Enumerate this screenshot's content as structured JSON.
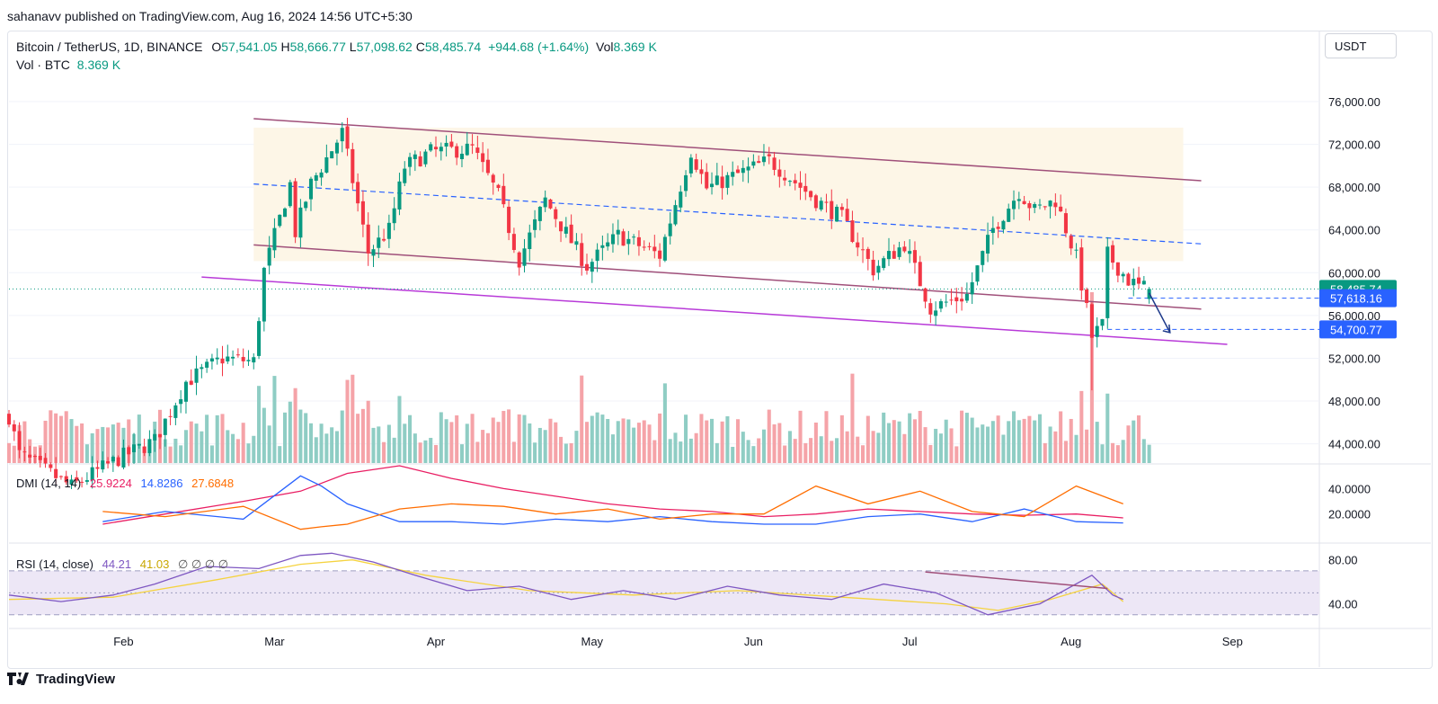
{
  "publisher": "sahanavv published on TradingView.com, Aug 16, 2024 14:56 UTC+5:30",
  "currency_button": "USDT",
  "footer_brand": "TradingView",
  "legend": {
    "symbol": "Bitcoin / TetherUS, 1D, BINANCE",
    "o_label": "O",
    "o": "57,541.05",
    "h_label": "H",
    "h": "58,666.77",
    "l_label": "L",
    "l": "57,098.62",
    "c_label": "C",
    "c": "58,485.74",
    "change": "+944.68 (+1.64%)",
    "vol_label": "Vol",
    "vol": "8.369 K",
    "vol_row_label": "Vol · BTC",
    "vol_row_value": "8.369 K"
  },
  "dmi_legend": {
    "label": "DMI (14, 14)",
    "v1": "25.9224",
    "v2": "14.8286",
    "v3": "27.6848"
  },
  "rsi_legend": {
    "label": "RSI (14, close)",
    "v1": "44.21",
    "v2": "41.03",
    "icons": "∅ ∅ ∅ ∅"
  },
  "colors": {
    "up": "#089981",
    "down": "#f23645",
    "vol_up": "#8fcdc4",
    "vol_down": "#f5a3a8",
    "channel": "#a0507a",
    "support": "#b83ad8",
    "dashed": "#2962ff",
    "adx": "#e91e63",
    "plus_di": "#2962ff",
    "minus_di": "#ff6d00",
    "rsi": "#7e57c2",
    "rsi_ma": "#f5d33f",
    "band": "#ede7f6",
    "channel_fill": "#fdf6e7",
    "tag_blue": "#2962ff",
    "tag_green": "#089981"
  },
  "chart_data": {
    "type": "candlestick",
    "title": "Bitcoin / TetherUS, 1D, BINANCE",
    "x_ticks": [
      "Feb",
      "Mar",
      "Apr",
      "May",
      "Jun",
      "Jul",
      "Aug",
      "Sep"
    ],
    "x_tick_dates": [
      "2024-02-01",
      "2024-03-01",
      "2024-04-01",
      "2024-05-01",
      "2024-06-01",
      "2024-07-01",
      "2024-08-01",
      "2024-09-01"
    ],
    "x_range": [
      "2024-01-10",
      "2024-09-17"
    ],
    "y_ticks": [
      "76,000.00",
      "72,000.00",
      "68,000.00",
      "64,000.00",
      "60,000.00",
      "56,000.00",
      "52,000.00",
      "48,000.00",
      "44,000.00"
    ],
    "y_tick_values": [
      76000,
      72000,
      68000,
      64000,
      60000,
      56000,
      52000,
      48000,
      44000
    ],
    "ylim": [
      42200,
      77600
    ],
    "price_tags": [
      {
        "label": "58,485.74",
        "value": 58485.74,
        "kind": "last"
      },
      {
        "label": "57,618.16",
        "value": 57618.16,
        "kind": "level"
      },
      {
        "label": "54,700.77",
        "value": 54700.77,
        "kind": "level"
      }
    ],
    "anchors": [
      [
        "2024-01-10",
        46600
      ],
      [
        "2024-01-12",
        43000
      ],
      [
        "2024-01-22",
        40000
      ],
      [
        "2024-01-31",
        42600
      ],
      [
        "2024-02-07",
        44300
      ],
      [
        "2024-02-13",
        49800
      ],
      [
        "2024-02-20",
        52000
      ],
      [
        "2024-02-26",
        51700
      ],
      [
        "2024-02-28",
        60200
      ],
      [
        "2024-03-04",
        68300
      ],
      [
        "2024-03-05",
        63800
      ],
      [
        "2024-03-08",
        68300
      ],
      [
        "2024-03-14",
        73100
      ],
      [
        "2024-03-19",
        61900
      ],
      [
        "2024-03-23",
        64000
      ],
      [
        "2024-03-26",
        69900
      ],
      [
        "2024-03-31",
        71300
      ],
      [
        "2024-04-08",
        71600
      ],
      [
        "2024-04-13",
        67200
      ],
      [
        "2024-04-17",
        61200
      ],
      [
        "2024-04-22",
        66800
      ],
      [
        "2024-04-30",
        60600
      ],
      [
        "2024-05-06",
        63500
      ],
      [
        "2024-05-14",
        61600
      ],
      [
        "2024-05-20",
        71400
      ],
      [
        "2024-05-23",
        67900
      ],
      [
        "2024-06-04",
        70500
      ],
      [
        "2024-06-07",
        69300
      ],
      [
        "2024-06-13",
        66800
      ],
      [
        "2024-06-18",
        65100
      ],
      [
        "2024-06-24",
        60300
      ],
      [
        "2024-06-30",
        62700
      ],
      [
        "2024-07-05",
        56700
      ],
      [
        "2024-07-12",
        57900
      ],
      [
        "2024-07-17",
        64100
      ],
      [
        "2024-07-22",
        67600
      ],
      [
        "2024-07-25",
        65800
      ],
      [
        "2024-07-29",
        66800
      ],
      [
        "2024-08-02",
        61400
      ],
      [
        "2024-08-05",
        54000
      ],
      [
        "2024-08-07",
        55100
      ],
      [
        "2024-08-08",
        61700
      ],
      [
        "2024-08-12",
        59300
      ],
      [
        "2024-08-14",
        58700
      ],
      [
        "2024-08-16",
        58485.74
      ]
    ],
    "channel_upper": [
      [
        "2024-02-26",
        74400
      ],
      [
        "2024-08-26",
        68600
      ]
    ],
    "channel_lower": [
      [
        "2024-02-26",
        62600
      ],
      [
        "2024-08-26",
        56600
      ]
    ],
    "channel_mid": [
      [
        "2024-02-26",
        68300
      ],
      [
        "2024-08-26",
        62700
      ]
    ],
    "support_line": [
      [
        "2024-02-16",
        59600
      ],
      [
        "2024-08-31",
        53300
      ]
    ],
    "projection": [
      [
        "2024-08-16",
        58100
      ],
      [
        "2024-08-20",
        54400
      ]
    ],
    "dmi": {
      "y_ticks": [
        "40.0000",
        "20.0000"
      ],
      "y_tick_values": [
        40,
        20
      ],
      "ylim": [
        0,
        58
      ],
      "adx": [
        [
          18,
          12
        ],
        [
          30,
          20
        ],
        [
          45,
          30
        ],
        [
          56,
          38
        ],
        [
          65,
          52
        ],
        [
          75,
          58
        ],
        [
          85,
          48
        ],
        [
          95,
          40
        ],
        [
          105,
          34
        ],
        [
          115,
          28
        ],
        [
          125,
          24
        ],
        [
          135,
          22
        ],
        [
          145,
          18
        ],
        [
          155,
          20
        ],
        [
          165,
          24
        ],
        [
          175,
          22
        ],
        [
          185,
          20
        ],
        [
          195,
          19
        ],
        [
          205,
          20
        ],
        [
          214,
          17
        ]
      ],
      "plus": [
        [
          18,
          14
        ],
        [
          30,
          22
        ],
        [
          45,
          16
        ],
        [
          56,
          50
        ],
        [
          60,
          42
        ],
        [
          65,
          28
        ],
        [
          75,
          14
        ],
        [
          85,
          14
        ],
        [
          95,
          12
        ],
        [
          105,
          16
        ],
        [
          115,
          14
        ],
        [
          125,
          18
        ],
        [
          135,
          14
        ],
        [
          145,
          12
        ],
        [
          155,
          12
        ],
        [
          165,
          18
        ],
        [
          175,
          20
        ],
        [
          185,
          14
        ],
        [
          195,
          24
        ],
        [
          205,
          14
        ],
        [
          214,
          13
        ]
      ],
      "minus": [
        [
          18,
          22
        ],
        [
          30,
          18
        ],
        [
          45,
          26
        ],
        [
          56,
          8
        ],
        [
          60,
          10
        ],
        [
          65,
          12
        ],
        [
          75,
          24
        ],
        [
          85,
          28
        ],
        [
          95,
          26
        ],
        [
          105,
          20
        ],
        [
          115,
          24
        ],
        [
          125,
          16
        ],
        [
          135,
          20
        ],
        [
          145,
          20
        ],
        [
          155,
          42
        ],
        [
          165,
          28
        ],
        [
          175,
          38
        ],
        [
          185,
          22
        ],
        [
          195,
          18
        ],
        [
          205,
          42
        ],
        [
          214,
          28
        ]
      ]
    },
    "rsi": {
      "y_ticks": [
        "80.00",
        "40.00"
      ],
      "y_tick_values": [
        80,
        40
      ],
      "ylim": [
        20,
        92
      ],
      "upper_band": 70,
      "mid_band": 50,
      "lower_band": 30,
      "rsi": [
        [
          0,
          48
        ],
        [
          10,
          42
        ],
        [
          20,
          48
        ],
        [
          28,
          58
        ],
        [
          38,
          74
        ],
        [
          48,
          72
        ],
        [
          56,
          84
        ],
        [
          62,
          86
        ],
        [
          70,
          78
        ],
        [
          78,
          66
        ],
        [
          88,
          52
        ],
        [
          98,
          56
        ],
        [
          108,
          44
        ],
        [
          118,
          52
        ],
        [
          128,
          44
        ],
        [
          138,
          56
        ],
        [
          148,
          48
        ],
        [
          158,
          44
        ],
        [
          168,
          58
        ],
        [
          178,
          50
        ],
        [
          188,
          30
        ],
        [
          198,
          40
        ],
        [
          208,
          66
        ],
        [
          212,
          48
        ],
        [
          214,
          44
        ]
      ],
      "rsi_ma": [
        [
          0,
          44
        ],
        [
          20,
          46
        ],
        [
          40,
          62
        ],
        [
          56,
          76
        ],
        [
          66,
          80
        ],
        [
          80,
          66
        ],
        [
          100,
          52
        ],
        [
          120,
          48
        ],
        [
          140,
          52
        ],
        [
          160,
          46
        ],
        [
          180,
          40
        ],
        [
          190,
          34
        ],
        [
          200,
          44
        ],
        [
          210,
          58
        ],
        [
          214,
          42
        ]
      ],
      "trendline": [
        [
          176,
          69
        ],
        [
          211,
          54
        ]
      ]
    }
  }
}
